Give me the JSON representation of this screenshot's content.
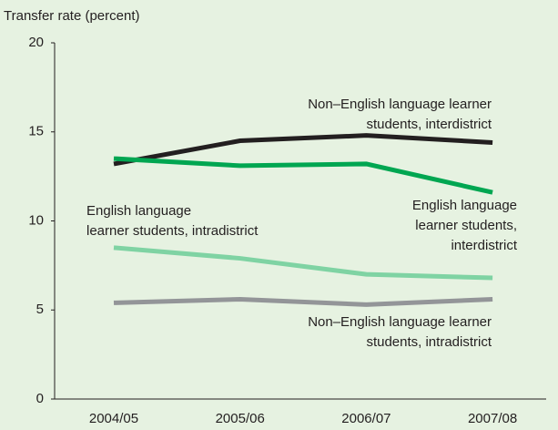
{
  "chart_data": {
    "type": "line",
    "y_label": "Transfer rate (percent)",
    "categories": [
      "2004/05",
      "2005/06",
      "2006/07",
      "2007/08"
    ],
    "series": [
      {
        "name": "Non–English language learner\nstudents, interdistrict",
        "color": "#231f20",
        "values": [
          13.2,
          14.5,
          14.8,
          14.4
        ]
      },
      {
        "name": "English language\nlearner students,\ninterdistrict",
        "color": "#00a651",
        "values": [
          13.5,
          13.1,
          13.2,
          11.6
        ]
      },
      {
        "name": "English language\nlearner students, intradistrict",
        "color": "#7fd3a3",
        "values": [
          8.5,
          7.9,
          7.0,
          6.8
        ]
      },
      {
        "name": "Non–English language learner\nstudents, intradistrict",
        "color": "#939598",
        "values": [
          5.4,
          5.6,
          5.3,
          5.6
        ]
      }
    ],
    "ylim": [
      0,
      20
    ],
    "yticks": [
      0,
      5,
      10,
      15,
      20
    ]
  }
}
